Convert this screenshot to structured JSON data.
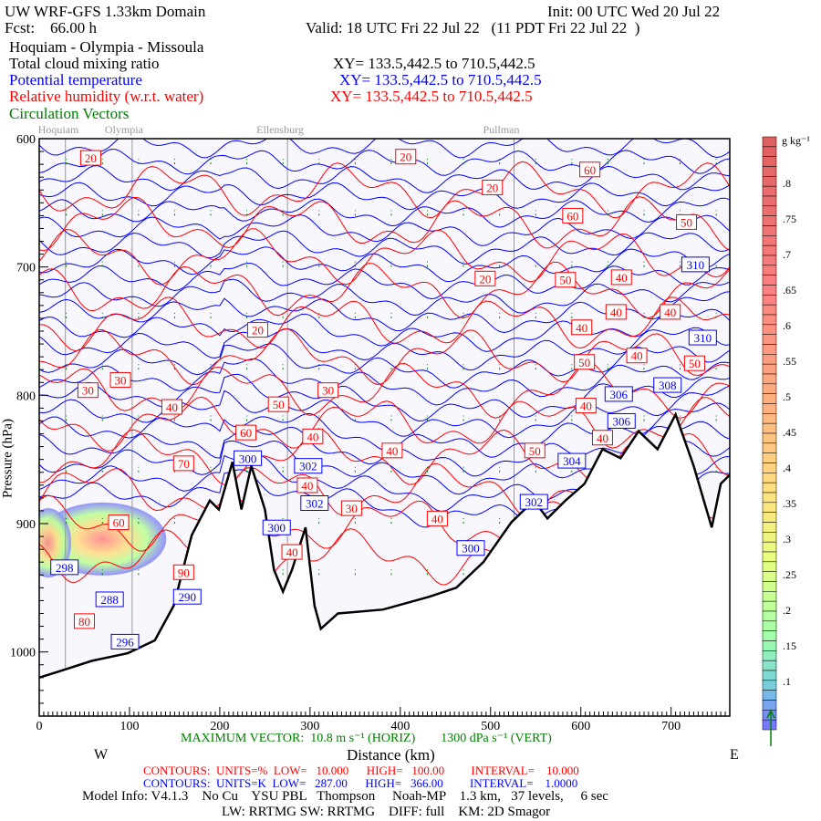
{
  "header": {
    "title": "UW WRF-GFS 1.33km Domain",
    "init": "Init: 00 UTC Wed 20 Jul 22",
    "fcst": "Fcst:    66.00 h",
    "valid": "Valid: 18 UTC Fri 22 Jul 22   (11 PDT Fri 22 Jul 22  )",
    "route": "Hoquiam - Olympia - Missoula",
    "field1": "Total cloud mixing ratio",
    "field1_xy": "XY= 133.5,442.5 to 710.5,442.5",
    "field2": "Potential temperature",
    "field2_xy": "XY= 133.5,442.5 to 710.5,442.5",
    "field3": "Relative humidity (w.r.t. water)",
    "field3_xy": "XY= 133.5,442.5 to 710.5,442.5",
    "field4": "Circulation Vectors"
  },
  "colors": {
    "theta": "#0000ff",
    "rh": "#ff0000",
    "vectors": "#008000",
    "terrain": "#000000",
    "plot_bg": "#f7f7fd"
  },
  "chart_data": {
    "type": "cross-section",
    "xlabel": "Distance (km)",
    "ylabel": "Pressure (hPa)",
    "xlim": [
      0,
      765
    ],
    "ylim": [
      1050,
      600
    ],
    "xticks": [
      "0",
      "100",
      "200",
      "300",
      "400",
      "500",
      "600",
      "700"
    ],
    "yticks": [
      "600",
      "700",
      "800",
      "900",
      "1000"
    ],
    "west_label": "W",
    "east_label": "E",
    "locations": [
      {
        "name": "Hoquiam",
        "km": 29
      },
      {
        "name": "Olympia",
        "km": 103
      },
      {
        "name": "Ellensburg",
        "km": 275
      },
      {
        "name": "Pullman",
        "km": 526
      }
    ],
    "terrain": [
      [
        0,
        1020
      ],
      [
        27,
        1014
      ],
      [
        58,
        1007
      ],
      [
        98,
        1001
      ],
      [
        128,
        991
      ],
      [
        149,
        964
      ],
      [
        169,
        909
      ],
      [
        189,
        882
      ],
      [
        199,
        889
      ],
      [
        214,
        852
      ],
      [
        224,
        889
      ],
      [
        235,
        855
      ],
      [
        250,
        889
      ],
      [
        260,
        936
      ],
      [
        270,
        953
      ],
      [
        280,
        936
      ],
      [
        295,
        903
      ],
      [
        305,
        964
      ],
      [
        312,
        982
      ],
      [
        331,
        970
      ],
      [
        381,
        967
      ],
      [
        432,
        957
      ],
      [
        462,
        950
      ],
      [
        492,
        930
      ],
      [
        523,
        899
      ],
      [
        548,
        882
      ],
      [
        563,
        896
      ],
      [
        583,
        882
      ],
      [
        604,
        869
      ],
      [
        624,
        842
      ],
      [
        644,
        849
      ],
      [
        664,
        828
      ],
      [
        685,
        842
      ],
      [
        705,
        815
      ],
      [
        725,
        855
      ],
      [
        745,
        903
      ],
      [
        755,
        869
      ],
      [
        765,
        862
      ]
    ],
    "theta_labels": [
      {
        "v": "310",
        "km": 727,
        "p": 698
      },
      {
        "v": "310",
        "km": 735,
        "p": 755
      },
      {
        "v": "308",
        "km": 696,
        "p": 792
      },
      {
        "v": "306",
        "km": 642,
        "p": 799
      },
      {
        "v": "306",
        "km": 645,
        "p": 820
      },
      {
        "v": "304",
        "km": 590,
        "p": 851
      },
      {
        "v": "302",
        "km": 548,
        "p": 883
      },
      {
        "v": "300",
        "km": 478,
        "p": 919
      },
      {
        "v": "302",
        "km": 305,
        "p": 884
      },
      {
        "v": "302",
        "km": 298,
        "p": 855
      },
      {
        "v": "300",
        "km": 263,
        "p": 903
      },
      {
        "v": "300",
        "km": 231,
        "p": 849
      },
      {
        "v": "298",
        "km": 28,
        "p": 934
      },
      {
        "v": "288",
        "km": 78,
        "p": 959
      },
      {
        "v": "296",
        "km": 95,
        "p": 992
      },
      {
        "v": "290",
        "km": 164,
        "p": 957
      }
    ],
    "rh_labels": [
      {
        "v": "20",
        "km": 57,
        "p": 615
      },
      {
        "v": "20",
        "km": 406,
        "p": 614
      },
      {
        "v": "20",
        "km": 502,
        "p": 638
      },
      {
        "v": "60",
        "km": 610,
        "p": 624
      },
      {
        "v": "60",
        "km": 591,
        "p": 660
      },
      {
        "v": "50",
        "km": 717,
        "p": 665
      },
      {
        "v": "20",
        "km": 494,
        "p": 709
      },
      {
        "v": "50",
        "km": 583,
        "p": 710
      },
      {
        "v": "40",
        "km": 645,
        "p": 708
      },
      {
        "v": "40",
        "km": 639,
        "p": 735
      },
      {
        "v": "40",
        "km": 699,
        "p": 735
      },
      {
        "v": "40",
        "km": 601,
        "p": 747
      },
      {
        "v": "50",
        "km": 604,
        "p": 774
      },
      {
        "v": "40",
        "km": 662,
        "p": 769
      },
      {
        "v": "50",
        "km": 726,
        "p": 775
      },
      {
        "v": "20",
        "km": 242,
        "p": 749
      },
      {
        "v": "30",
        "km": 54,
        "p": 796
      },
      {
        "v": "30",
        "km": 90,
        "p": 788
      },
      {
        "v": "40",
        "km": 147,
        "p": 809
      },
      {
        "v": "30",
        "km": 320,
        "p": 796
      },
      {
        "v": "50",
        "km": 265,
        "p": 807
      },
      {
        "v": "60",
        "km": 229,
        "p": 829
      },
      {
        "v": "40",
        "km": 303,
        "p": 832
      },
      {
        "v": "70",
        "km": 160,
        "p": 853
      },
      {
        "v": "40",
        "km": 297,
        "p": 863
      },
      {
        "v": "40",
        "km": 391,
        "p": 843
      },
      {
        "v": "50",
        "km": 549,
        "p": 843
      },
      {
        "v": "40",
        "km": 624,
        "p": 833
      },
      {
        "v": "40",
        "km": 634,
        "p": 808
      },
      {
        "v": "30",
        "km": 346,
        "p": 888
      },
      {
        "v": "40",
        "km": 441,
        "p": 896
      },
      {
        "v": "40",
        "km": 280,
        "p": 915
      },
      {
        "v": "60",
        "km": 88,
        "p": 899
      },
      {
        "v": "90",
        "km": 160,
        "p": 945
      },
      {
        "v": "80",
        "km": 50,
        "p": 976
      }
    ],
    "colorbar": {
      "units": "g kg⁻¹",
      "labels": [
        ".8",
        ".75",
        ".7",
        ".65",
        ".6",
        ".55",
        ".5",
        ".45",
        ".4",
        ".35",
        ".3",
        ".25",
        ".2",
        ".15",
        ".1"
      ]
    }
  },
  "footer": {
    "max_vector": "MAXIMUM VECTOR:  10.8 m s⁻¹ (HORIZ)        1300 dPa s⁻¹ (VERT)",
    "rh_contours": "CONTOURS:  UNITS=%  LOW=   10.000      HIGH=   100.00         INTERVAL=    10.000",
    "theta_contours": "CONTOURS:  UNITS=K  LOW=   287.00      HIGH=   366.00         INTERVAL=    1.0000",
    "model_info": "Model Info: V4.1.3    No Cu    YSU PBL   Thompson     Noah-MP    1.3 km,   37 levels,     6 sec",
    "physics": "LW: RRTMG SW: RRTMG    DIFF: full    KM: 2D Smagor"
  }
}
